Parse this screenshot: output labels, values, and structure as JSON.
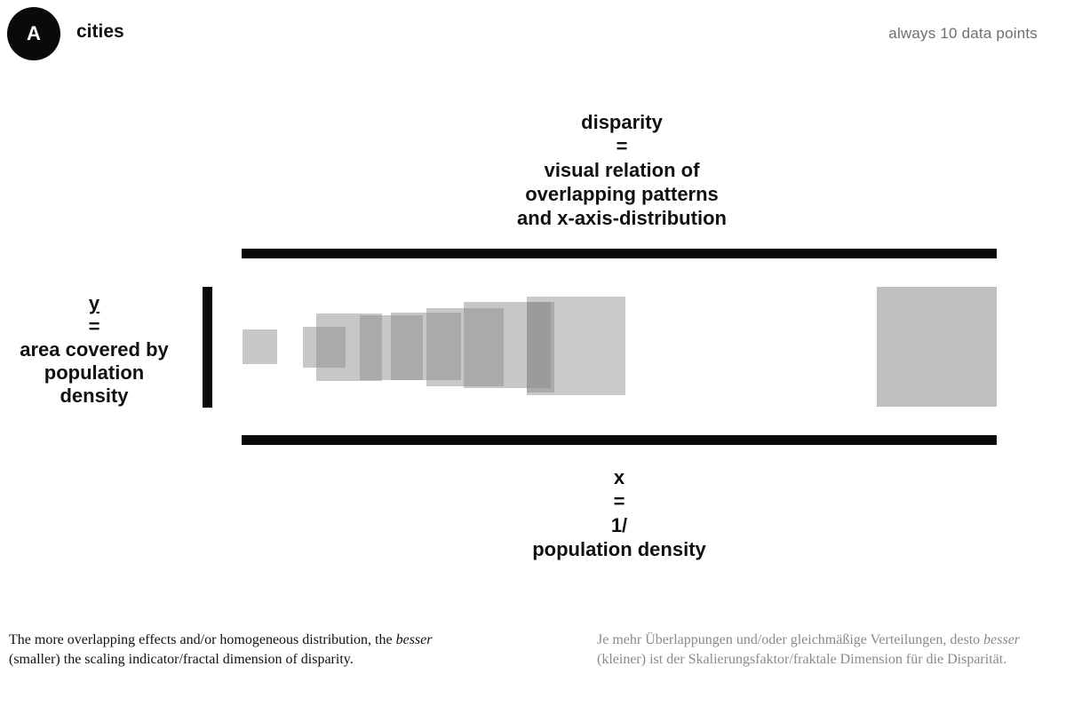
{
  "header": {
    "badge": "A",
    "title": "cities",
    "note": "always 10 data points"
  },
  "top_label": {
    "lines": [
      "disparity",
      "=",
      "visual relation of",
      "overlapping patterns",
      "and x-axis-distribution"
    ]
  },
  "left_label": {
    "lines": [
      "y",
      "=",
      "area covered by",
      "population",
      "density"
    ]
  },
  "bottom_label": {
    "lines": [
      "x",
      "=",
      "1/",
      "population density"
    ]
  },
  "footnotes": {
    "en": {
      "before": "The more overlapping effects and/or homogeneous distribution, the ",
      "emph": "besser",
      "after": " (smaller) the scaling indicator/fractal dimension of disparity."
    },
    "de": {
      "before": "Je mehr Überlappungen und/oder gleichmäßige Verteilungen, desto ",
      "emph": "besser",
      "after": " (kleiner) ist der Skalierungsfaktor/fraktale Dimension für die Disparität."
    }
  },
  "colors": {
    "axis": "#0a0a0a",
    "square_fill": "#8a8a8a",
    "note_text": "#6f6f6f",
    "german_text": "#8a8a8a"
  }
}
